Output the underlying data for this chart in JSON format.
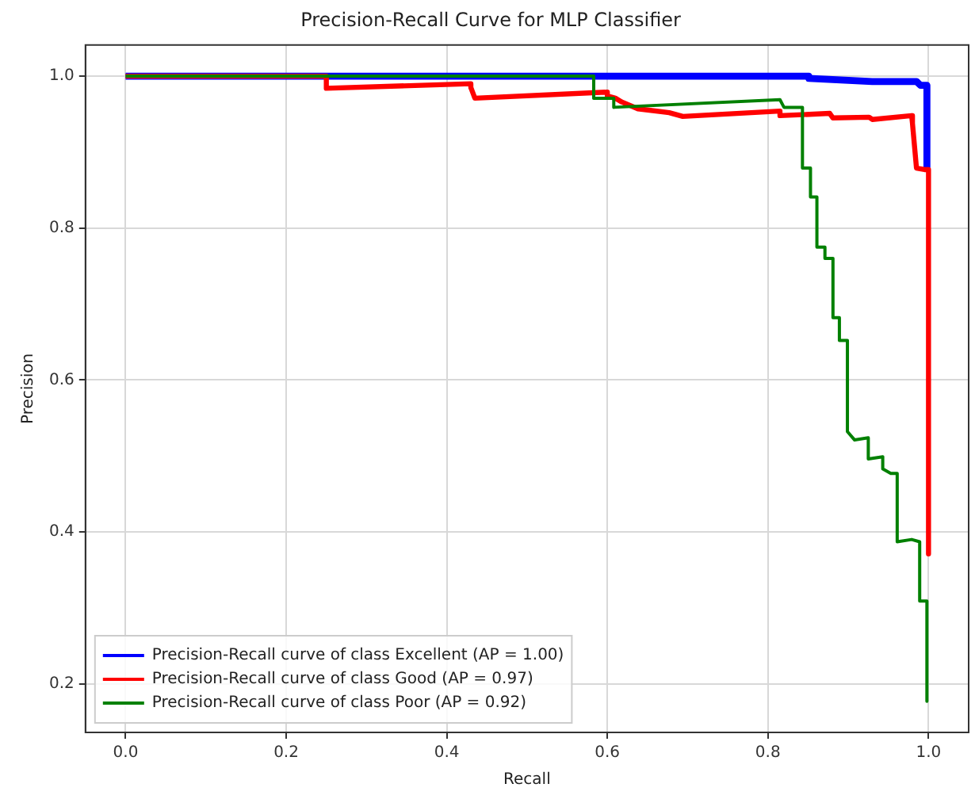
{
  "chart_data": {
    "type": "line",
    "title": "Precision-Recall Curve for MLP Classifier",
    "xlabel": "Recall",
    "ylabel": "Precision",
    "xlim": [
      -0.05,
      1.05
    ],
    "xticks": [
      {
        "value": 0,
        "label": "0.0"
      },
      0.2,
      0.4,
      0.6,
      0.8,
      {
        "value": 1,
        "label": "1.0"
      }
    ],
    "ylim": [
      0.136,
      1.041
    ],
    "yticks": [
      0.2,
      0.4,
      0.6,
      0.8,
      {
        "value": 1,
        "label": "1.0"
      }
    ],
    "grid": true,
    "legend": "bottom left",
    "marker": "none",
    "line_style": "solid",
    "series": [
      {
        "name": "Precision-Recall curve of class Excellent (AP = 1.00)",
        "color": "#0000ff",
        "x": [
          0,
          0.851,
          0.851,
          0.93,
          0.985,
          0.99,
          0.998,
          0.998
        ],
        "values": [
          1,
          1,
          0.997,
          0.993,
          0.993,
          0.988,
          0.988,
          0.88
        ]
      },
      {
        "name": "Precision-Recall curve of class Good (AP = 0.97)",
        "color": "#ff0000",
        "x": [
          0,
          0.25,
          0.25,
          0.43,
          0.43,
          0.435,
          0.6,
          0.6,
          0.61,
          0.618,
          0.638,
          0.677,
          0.694,
          0.815,
          0.815,
          0.877,
          0.881,
          0.926,
          0.93,
          0.979,
          0.98,
          0.985,
          0.995,
          1.0,
          1.0
        ],
        "values": [
          1,
          1,
          0.984,
          0.99,
          0.985,
          0.971,
          0.979,
          0.974,
          0.971,
          0.966,
          0.957,
          0.952,
          0.947,
          0.954,
          0.948,
          0.951,
          0.945,
          0.946,
          0.943,
          0.948,
          0.938,
          0.879,
          0.877,
          0.877,
          0.371
        ]
      },
      {
        "name": "Precision-Recall curve of class Poor (AP = 0.92)",
        "color": "#008000",
        "x": [
          0,
          0.583,
          0.583,
          0.608,
          0.608,
          0.815,
          0.82,
          0.843,
          0.843,
          0.853,
          0.853,
          0.861,
          0.861,
          0.871,
          0.871,
          0.881,
          0.881,
          0.889,
          0.889,
          0.899,
          0.899,
          0.908,
          0.925,
          0.925,
          0.943,
          0.943,
          0.953,
          0.961,
          0.961,
          0.979,
          0.989,
          0.989,
          0.998,
          0.998
        ],
        "values": [
          1,
          1,
          0.971,
          0.971,
          0.959,
          0.969,
          0.959,
          0.959,
          0.879,
          0.879,
          0.841,
          0.841,
          0.775,
          0.775,
          0.76,
          0.76,
          0.682,
          0.682,
          0.652,
          0.652,
          0.532,
          0.521,
          0.524,
          0.496,
          0.499,
          0.483,
          0.477,
          0.477,
          0.387,
          0.39,
          0.387,
          0.309,
          0.309,
          0.177
        ]
      }
    ]
  }
}
